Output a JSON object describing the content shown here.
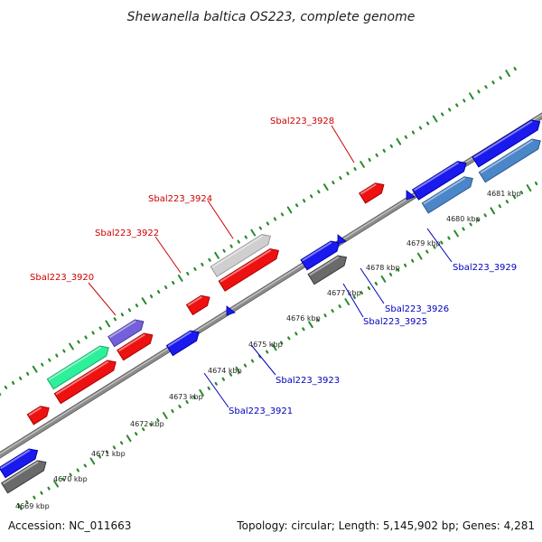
{
  "title": "Shewanella baltica OS223, complete genome",
  "footer": {
    "accession": "Accession: NC_011663",
    "summary": "Topology: circular; Length: 5,145,902 bp; Genes: 4,281"
  },
  "colors": {
    "tick": "#2a8a2a",
    "backbone": "#8c8c8c",
    "top_label": "#cc0000",
    "bottom_label": "#0000bb"
  },
  "ruler": [
    "4669 kbp",
    "4670 kbp",
    "4671 kbp",
    "4672 kbp",
    "4673 kbp",
    "4674 kbp",
    "4675 kbp",
    "4676 kbp",
    "4677 kbp",
    "4678 kbp",
    "4679 kbp",
    "4680 kbp",
    "4681 kbp"
  ],
  "top_labels": [
    "Sbal223_3920",
    "Sbal223_3922",
    "Sbal223_3924",
    "Sbal223_3928"
  ],
  "bottom_labels": [
    "Sbal223_3921",
    "Sbal223_3923",
    "Sbal223_3925",
    "Sbal223_3926",
    "Sbal223_3929"
  ]
}
